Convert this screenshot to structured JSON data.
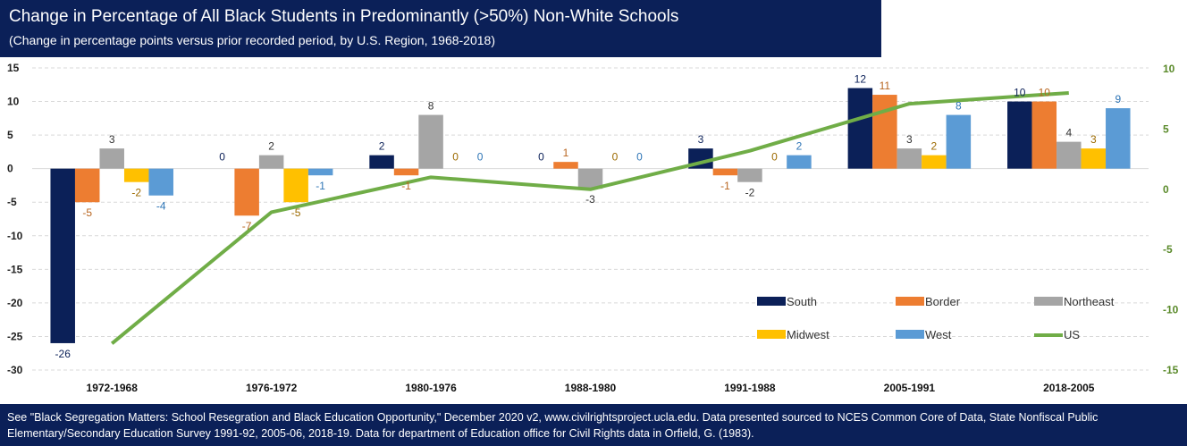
{
  "header": {
    "title": "Change in Percentage of All Black Students in Predominantly (>50%) Non-White Schools",
    "subtitle": "(Change in percentage points versus prior recorded period, by U.S. Region, 1968-2018)"
  },
  "footer": {
    "note": "See \"Black Segregation Matters: School Resegration and Black Education Opportunity,\" December 2020 v2, www.civilrightsproject.ucla.edu. Data presented sourced to NCES Common Core of Data, State Nonfiscal Public Elementary/Secondary Education Survey 1991-92, 2005-06, 2018-19. Data for department of Education office for Civil Rights data in Orfield, G. (1983)."
  },
  "chart_data": {
    "type": "bar",
    "categories": [
      "1972-1968",
      "1976-1972",
      "1980-1976",
      "1988-1980",
      "1991-1988",
      "2005-1991",
      "2018-2005"
    ],
    "series": [
      {
        "name": "South",
        "values": [
          -26,
          0,
          2,
          0,
          3,
          12,
          10
        ],
        "color": "#0b2058",
        "label_color": "#0b2058"
      },
      {
        "name": "Border",
        "values": [
          -5,
          -7,
          -1,
          1,
          -1,
          11,
          10
        ],
        "color": "#ed7d31",
        "label_color": "#b8651f"
      },
      {
        "name": "Northeast",
        "values": [
          3,
          2,
          8,
          -3,
          -2,
          3,
          4
        ],
        "color": "#a5a5a5",
        "label_color": "#333333"
      },
      {
        "name": "Midwest",
        "values": [
          -2,
          -5,
          0,
          0,
          0,
          2,
          3
        ],
        "color": "#ffc000",
        "label_color": "#9c6a00"
      },
      {
        "name": "West",
        "values": [
          -4,
          -1,
          0,
          0,
          2,
          8,
          9
        ],
        "color": "#5b9bd5",
        "label_color": "#2e75b6"
      }
    ],
    "line_series": {
      "name": "US",
      "values": [
        -12.8,
        -1.9,
        1.0,
        0.0,
        3.2,
        7.1,
        8.0
      ],
      "color": "#70ad47",
      "axis": "right"
    },
    "ylim": [
      -30,
      15
    ],
    "yticks": [
      15,
      10,
      5,
      0,
      -5,
      -10,
      -15,
      -20,
      -25,
      -30
    ],
    "y2lim": [
      -15,
      10
    ],
    "y2ticks": [
      10,
      5,
      0,
      -5,
      -10,
      -15
    ],
    "legend_position": "bottom-right",
    "grid": true
  }
}
